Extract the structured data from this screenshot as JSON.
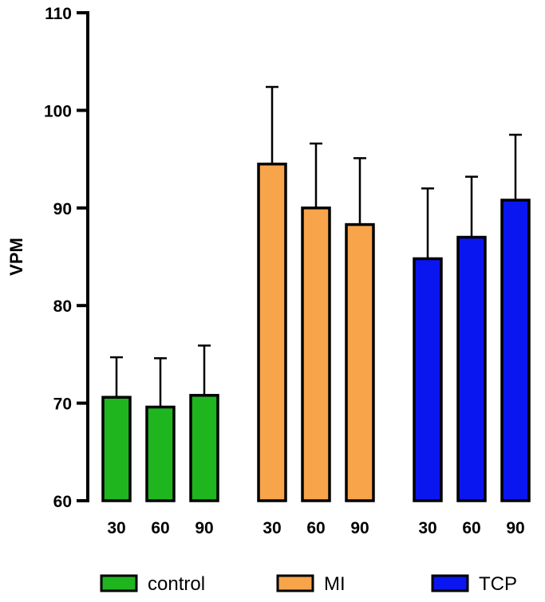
{
  "chart_data": {
    "type": "bar",
    "title": "",
    "xlabel": "",
    "ylabel": "VPM",
    "ylim": [
      60,
      110
    ],
    "yticks": [
      60,
      70,
      80,
      90,
      100,
      110
    ],
    "grid": false,
    "legend_position": "bottom",
    "groups": [
      {
        "name": "control",
        "color": "#1fb51f",
        "categories": [
          "30",
          "60",
          "90"
        ],
        "values": [
          70.6,
          69.6,
          70.8
        ],
        "error": [
          4.1,
          5.0,
          5.1
        ]
      },
      {
        "name": "MI",
        "color": "#f7a44b",
        "categories": [
          "30",
          "60",
          "90"
        ],
        "values": [
          94.5,
          90.0,
          88.3
        ],
        "error": [
          7.9,
          6.6,
          6.8
        ]
      },
      {
        "name": "TCP",
        "color": "#0a16f0",
        "categories": [
          "30",
          "60",
          "90"
        ],
        "values": [
          84.8,
          87.0,
          90.8
        ],
        "error": [
          7.2,
          6.2,
          6.7
        ]
      }
    ]
  }
}
